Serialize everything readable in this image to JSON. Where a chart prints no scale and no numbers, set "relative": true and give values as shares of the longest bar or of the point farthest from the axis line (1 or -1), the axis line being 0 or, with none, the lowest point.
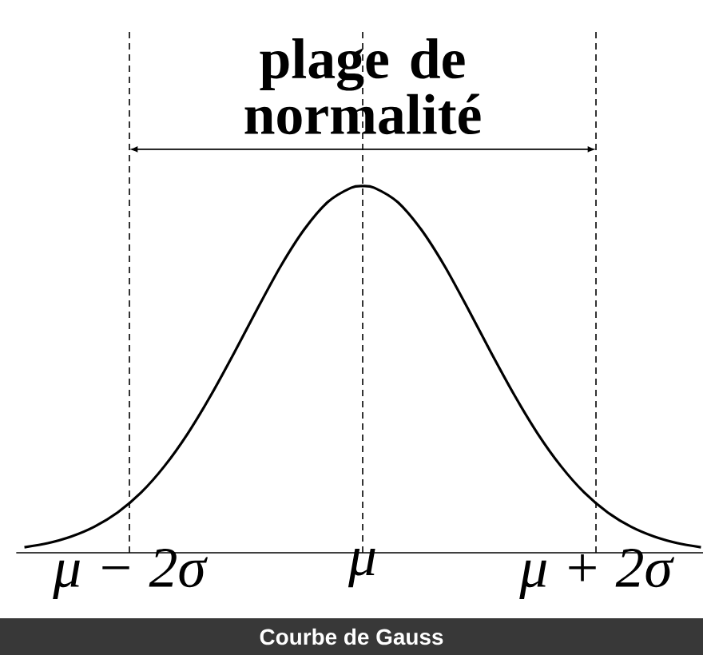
{
  "chart_data": {
    "type": "line",
    "relative": true,
    "marker": "none",
    "line_style": "solid",
    "x": [
      -2.9,
      -2.7,
      -2.5,
      -2.3,
      -2.1,
      -1.9,
      -1.7,
      -1.5,
      -1.3,
      -1.1,
      -0.9,
      -0.7,
      -0.5,
      -0.3,
      -0.1,
      0,
      0.1,
      0.3,
      0.5,
      0.7,
      0.9,
      1.1,
      1.3,
      1.5,
      1.7,
      1.9,
      2.1,
      2.3,
      2.5,
      2.7,
      2.9
    ],
    "series": [
      {
        "color": "#000000",
        "values": [
          0.015,
          0.026,
          0.044,
          0.071,
          0.11,
          0.164,
          0.236,
          0.325,
          0.43,
          0.546,
          0.667,
          0.783,
          0.882,
          0.956,
          0.995,
          1,
          0.995,
          0.956,
          0.882,
          0.783,
          0.667,
          0.546,
          0.43,
          0.325,
          0.236,
          0.164,
          0.11,
          0.071,
          0.044,
          0.026,
          0.015
        ]
      }
    ],
    "xlim": [
      -2.97,
      2.92
    ],
    "xticks": [
      {
        "value": -2,
        "label": "μ − 2σ"
      },
      {
        "value": 0,
        "label": "μ"
      },
      {
        "value": 2,
        "label": "μ + 2σ"
      }
    ],
    "ref_lines": [
      {
        "axis": "x",
        "value": -2,
        "color": "#000000",
        "line_style": "dashed"
      },
      {
        "axis": "x",
        "value": 0,
        "color": "#000000",
        "line_style": "dashed"
      },
      {
        "axis": "x",
        "value": 2,
        "color": "#000000",
        "line_style": "dashed"
      }
    ],
    "annotations": [
      "plage de normalité",
      "Courbe de Gauss"
    ]
  }
}
